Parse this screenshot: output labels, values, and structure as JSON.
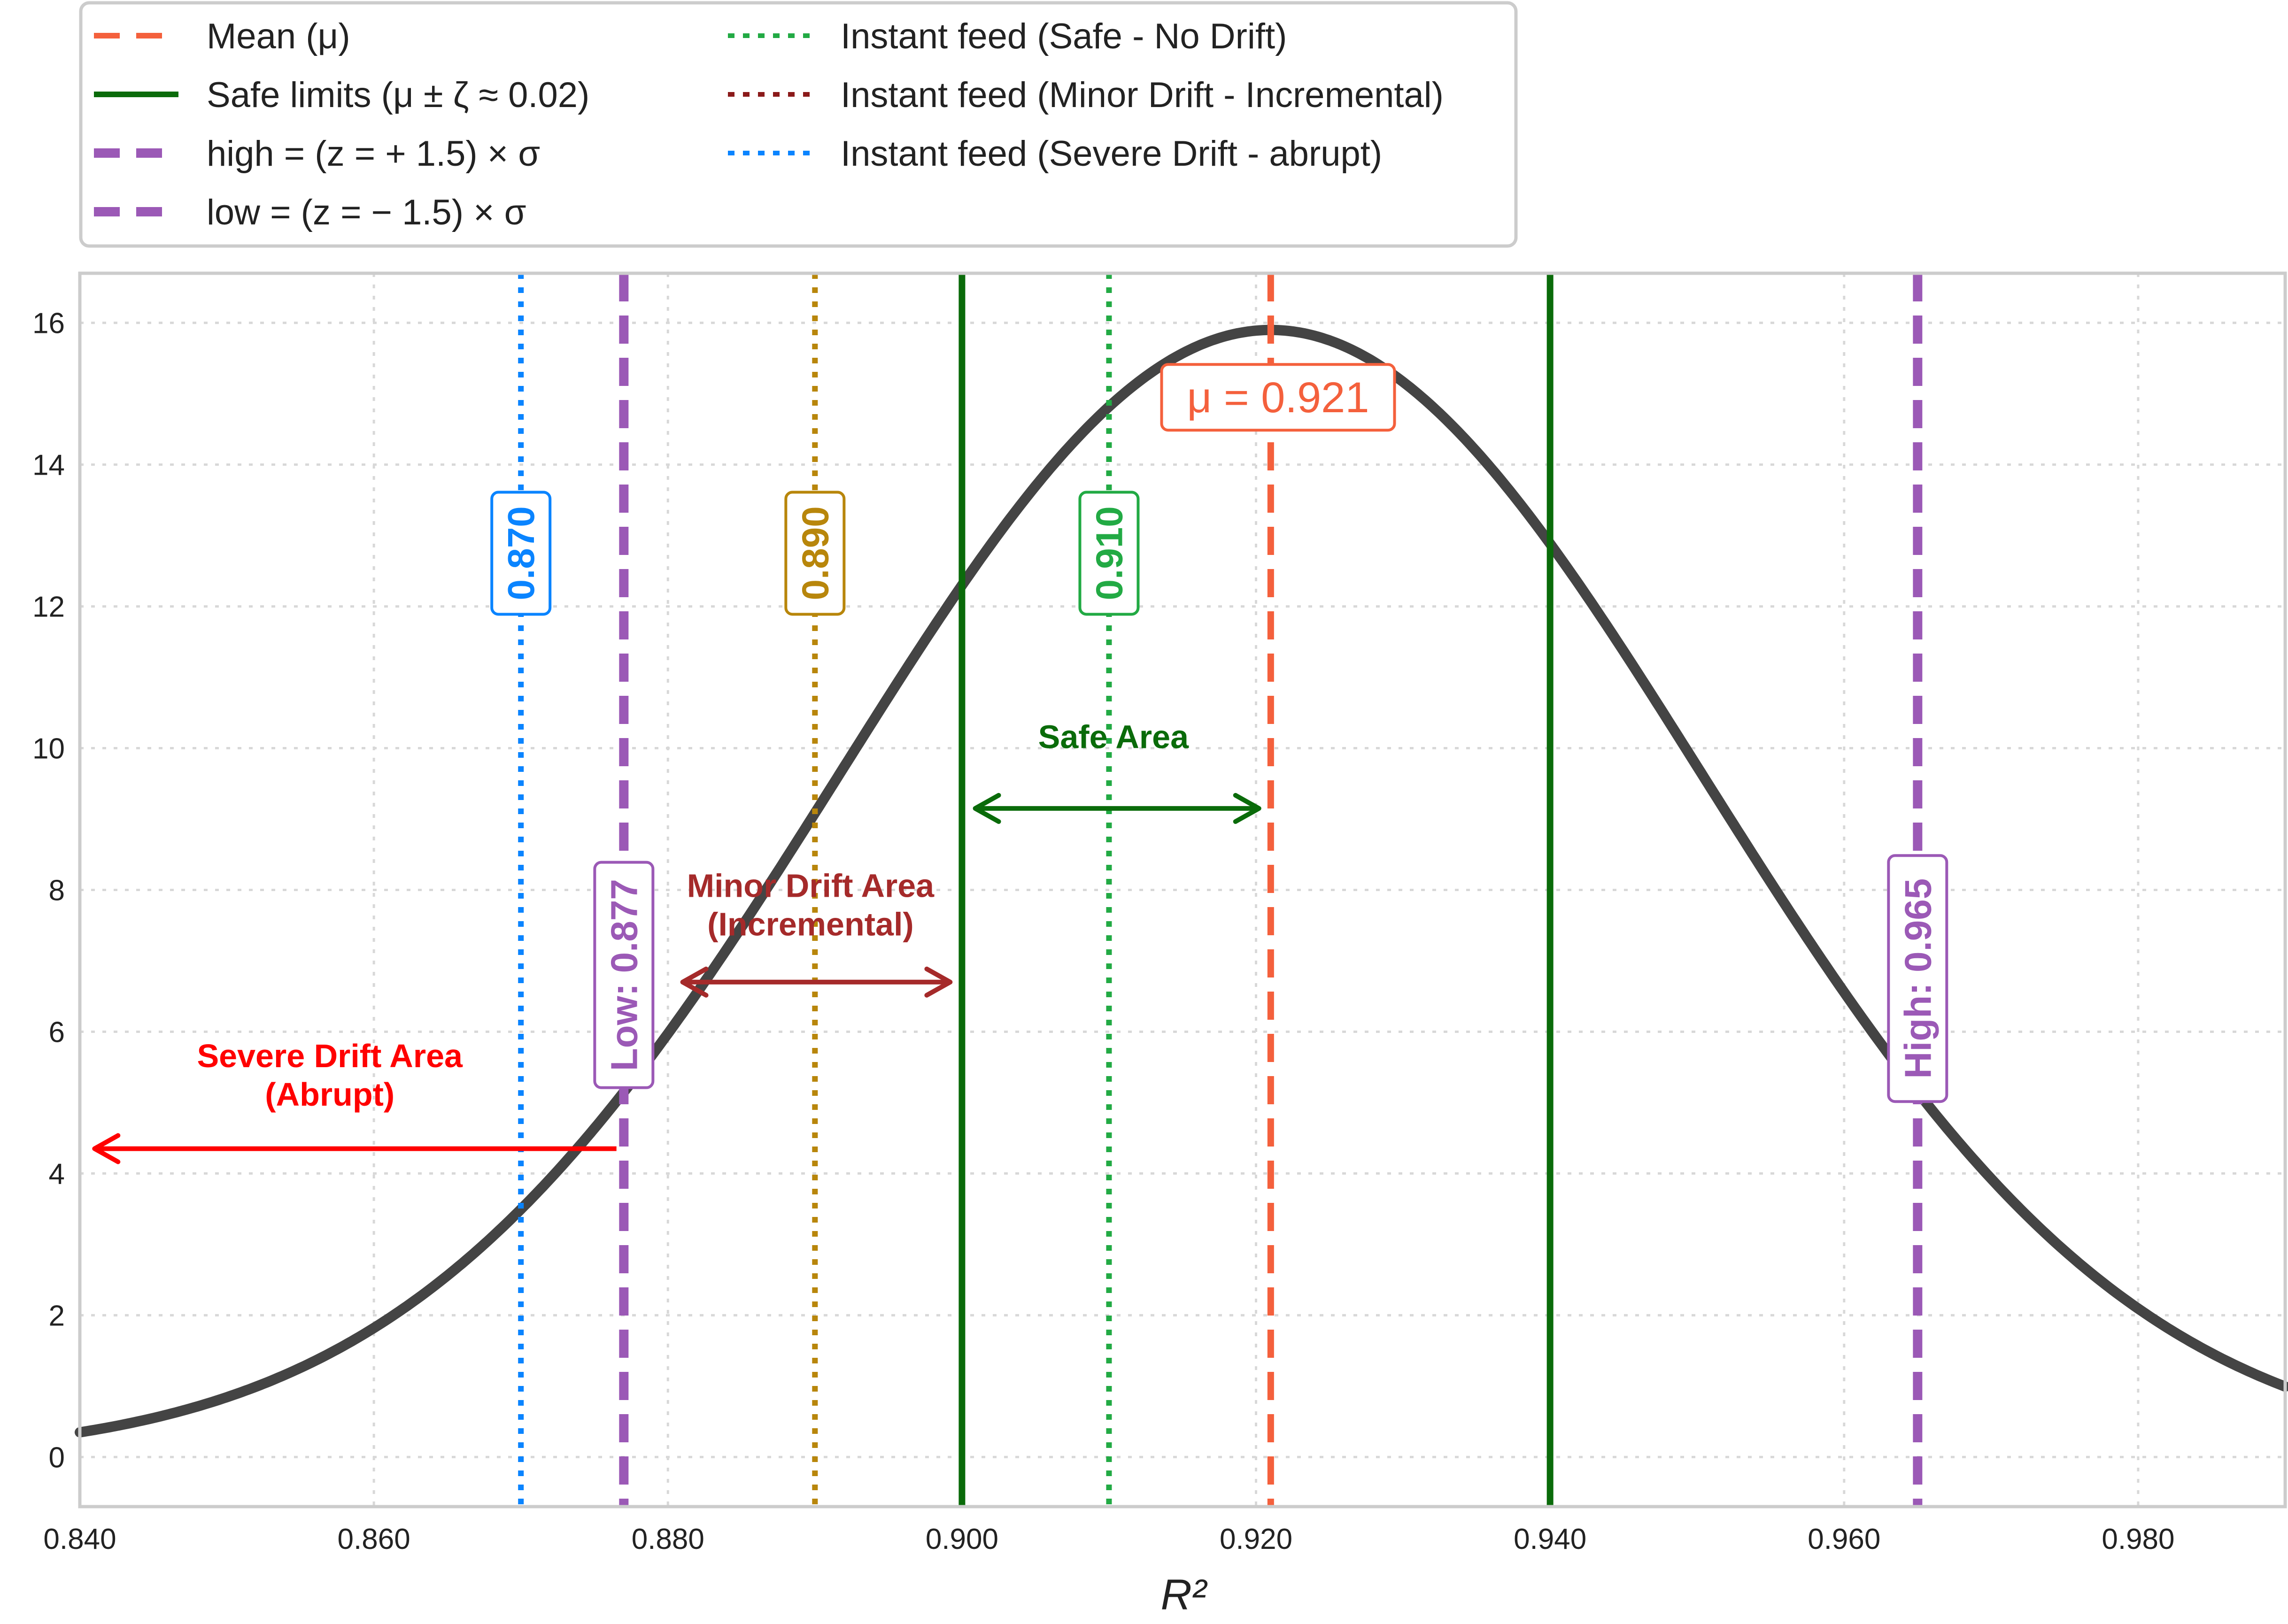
{
  "chart_data": {
    "type": "line",
    "title": "",
    "xlabel": "R²",
    "ylabel": "",
    "xlim": [
      0.84,
      0.99
    ],
    "ylim": [
      -0.7,
      16.7
    ],
    "grid": true,
    "grid_style": "dotted",
    "legend_placement": "top-left (outside, above plot)",
    "xticks": [
      "0.840",
      "0.860",
      "0.880",
      "0.900",
      "0.920",
      "0.940",
      "0.960",
      "0.980"
    ],
    "xtick_values": [
      0.84,
      0.86,
      0.88,
      0.9,
      0.92,
      0.94,
      0.96,
      0.98
    ],
    "yticks": [
      "0",
      "2",
      "4",
      "6",
      "8",
      "10",
      "12",
      "14",
      "16"
    ],
    "ytick_values": [
      0,
      2,
      4,
      6,
      8,
      10,
      12,
      14,
      16
    ],
    "distribution": {
      "kind": "normal-density",
      "mean": 0.921,
      "sigma": 0.0293,
      "peak": 15.9,
      "color": "#444444"
    },
    "legend": [
      {
        "label": "Mean (μ)",
        "color": "#f4603c",
        "style": "dashed"
      },
      {
        "label": "Safe limits (μ ± ζ ≈ 0.02)",
        "color": "#0a6b0a",
        "style": "solid"
      },
      {
        "label": "high = (z = + 1.5) × σ",
        "color": "#9b59b6",
        "style": "dashed"
      },
      {
        "label": "low = (z = − 1.5) × σ",
        "color": "#9b59b6",
        "style": "dashed"
      },
      {
        "label": "Instant feed (Safe - No Drift)",
        "color": "#22aa44",
        "style": "dotted"
      },
      {
        "label": "Instant feed (Minor Drift - Incremental)",
        "color": "#8b1a1a",
        "style": "dotted"
      },
      {
        "label": "Instant feed (Severe Drift - abrupt)",
        "color": "#0a84ff",
        "style": "dotted"
      }
    ],
    "vlines": [
      {
        "x": 0.921,
        "color": "#f4603c",
        "style": "dashed"
      },
      {
        "x": 0.9,
        "color": "#0a6b0a",
        "style": "solid"
      },
      {
        "x": 0.94,
        "color": "#0a6b0a",
        "style": "solid"
      },
      {
        "x": 0.877,
        "color": "#9b59b6",
        "style": "dashed"
      },
      {
        "x": 0.965,
        "color": "#9b59b6",
        "style": "dashed"
      },
      {
        "x": 0.87,
        "color": "#0a84ff",
        "style": "dotted"
      },
      {
        "x": 0.89,
        "color": "#b8860b",
        "style": "dotted"
      },
      {
        "x": 0.91,
        "color": "#22aa44",
        "style": "dotted"
      }
    ],
    "value_labels": [
      {
        "text": "0.870",
        "x": 0.87,
        "y": 12.75,
        "color": "#0a84ff"
      },
      {
        "text": "0.890",
        "x": 0.89,
        "y": 12.75,
        "color": "#b8860b"
      },
      {
        "text": "0.910",
        "x": 0.91,
        "y": 12.75,
        "color": "#22aa44"
      },
      {
        "text": "Low: 0.877",
        "x": 0.877,
        "y": 6.8,
        "color": "#9b59b6"
      },
      {
        "text": "High: 0.965",
        "x": 0.965,
        "y": 6.75,
        "color": "#9b59b6"
      }
    ],
    "mean_label": {
      "text": "μ = 0.921",
      "x": 0.9215,
      "y": 14.95,
      "color": "#f4603c"
    },
    "areas": [
      {
        "label_lines": [
          "Safe Area"
        ],
        "x_from": 0.9009,
        "x_to": 0.9202,
        "arrow_y": 9.15,
        "label_x": 0.9103,
        "label_y": 10.0,
        "color": "#0a6b0a",
        "arrow": "both"
      },
      {
        "label_lines": [
          "Minor Drift Area",
          "(Incremental)"
        ],
        "x_from": 0.881,
        "x_to": 0.8992,
        "arrow_y": 6.7,
        "label_x": 0.8897,
        "label_y": 7.9,
        "color": "#a52a2a",
        "arrow": "both"
      },
      {
        "label_lines": [
          "Severe Drift Area",
          "(Abrupt)"
        ],
        "x_from": 0.8765,
        "x_to": 0.841,
        "arrow_y": 4.35,
        "label_x": 0.857,
        "label_y": 5.5,
        "color": "#ff0000",
        "arrow": "left"
      }
    ]
  }
}
